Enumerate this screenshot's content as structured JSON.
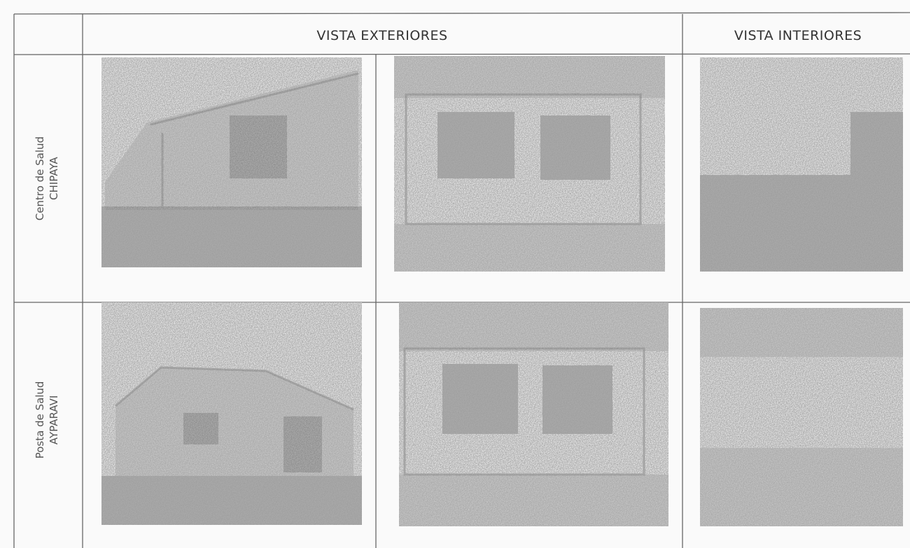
{
  "table": {
    "headers": [
      "VISTA EXTERIORES",
      "VISTA INTERIORES"
    ],
    "rows": [
      {
        "label": [
          "Centro de Salud",
          "CHIPAYA"
        ]
      },
      {
        "label": [
          "Posta de Salud",
          "AYPARAVI"
        ]
      }
    ]
  }
}
